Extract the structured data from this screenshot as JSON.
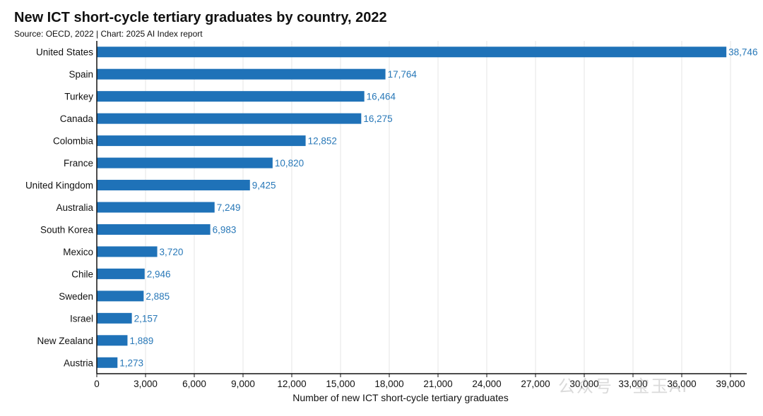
{
  "header": {
    "title": "New ICT short-cycle tertiary graduates by country, 2022",
    "source": "Source: OECD, 2022 | Chart: 2025 AI Index report"
  },
  "watermark": "公众号 · 宝玉AI",
  "colors": {
    "bar": "#1f72b8",
    "value_label": "#2878b8",
    "grid": "#e6e6e6",
    "axis": "#111111"
  },
  "chart_data": {
    "type": "bar",
    "orientation": "horizontal",
    "title": "New ICT short-cycle tertiary graduates by country, 2022",
    "xlabel": "Number of new ICT short-cycle tertiary graduates",
    "ylabel": "",
    "xlim": [
      0,
      40000
    ],
    "xticks": [
      0,
      3000,
      6000,
      9000,
      12000,
      15000,
      18000,
      21000,
      24000,
      27000,
      30000,
      33000,
      36000,
      39000
    ],
    "grid": true,
    "categories": [
      "United States",
      "Spain",
      "Turkey",
      "Canada",
      "Colombia",
      "France",
      "United Kingdom",
      "Australia",
      "South Korea",
      "Mexico",
      "Chile",
      "Sweden",
      "Israel",
      "New Zealand",
      "Austria"
    ],
    "values": [
      38746,
      17764,
      16464,
      16275,
      12852,
      10820,
      9425,
      7249,
      6983,
      3720,
      2946,
      2885,
      2157,
      1889,
      1273
    ]
  }
}
